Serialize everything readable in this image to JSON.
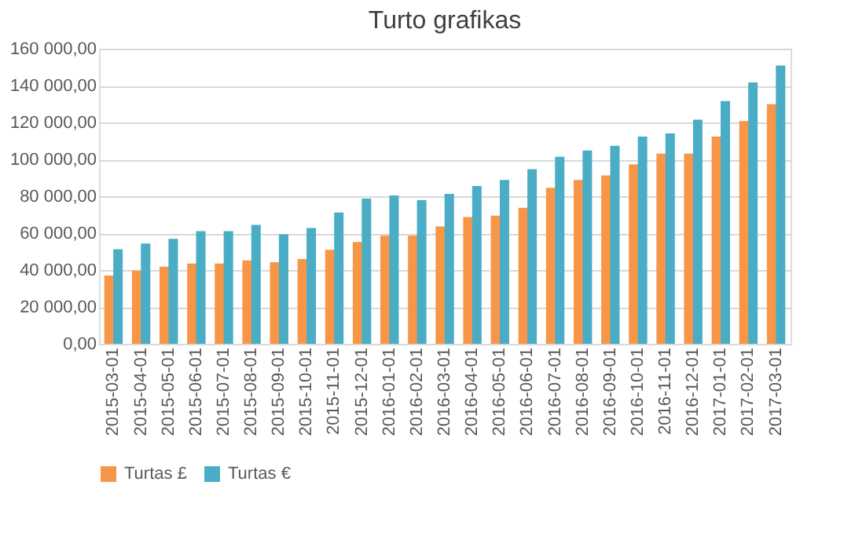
{
  "chart_data": {
    "type": "bar",
    "title": "Turto grafikas",
    "categories": [
      "2015-03-01",
      "2015-04-01",
      "2015-05-01",
      "2015-06-01",
      "2015-07-01",
      "2015-08-01",
      "2015-09-01",
      "2015-10-01",
      "2015-11-01",
      "2015-12-01",
      "2016-01-01",
      "2016-02-01",
      "2016-03-01",
      "2016-04-01",
      "2016-05-01",
      "2016-06-01",
      "2016-07-01",
      "2016-08-01",
      "2016-09-01",
      "2016-10-01",
      "2016-11-01",
      "2016-12-01",
      "2017-01-01",
      "2017-02-01",
      "2017-03-01"
    ],
    "series": [
      {
        "name": "Turtas £",
        "color": "#f79646",
        "values": [
          37000,
          39700,
          41800,
          43500,
          43500,
          45200,
          44300,
          46000,
          51000,
          55200,
          58600,
          58600,
          63600,
          68700,
          69500,
          73700,
          84600,
          88800,
          91300,
          97200,
          103100,
          103100,
          112300,
          120700,
          129900
        ]
      },
      {
        "name": "Turtas €",
        "color": "#4bacc6",
        "values": [
          51300,
          54400,
          56900,
          61100,
          61100,
          64500,
          59400,
          62800,
          71200,
          78700,
          80400,
          77900,
          81300,
          85500,
          88800,
          94700,
          101400,
          104800,
          107300,
          112300,
          114000,
          121500,
          131600,
          141700,
          150900
        ]
      }
    ],
    "ylim": [
      0,
      160000
    ],
    "yticks": [
      {
        "value": 0,
        "label": "0,00"
      },
      {
        "value": 20000,
        "label": "20 000,00"
      },
      {
        "value": 40000,
        "label": "40 000,00"
      },
      {
        "value": 60000,
        "label": "60 000,00"
      },
      {
        "value": 80000,
        "label": "80 000,00"
      },
      {
        "value": 100000,
        "label": "100 000,00"
      },
      {
        "value": 120000,
        "label": "120 000,00"
      },
      {
        "value": 140000,
        "label": "140 000,00"
      },
      {
        "value": 160000,
        "label": "160 000,00"
      }
    ],
    "grid": "y",
    "legend": "bottom"
  }
}
